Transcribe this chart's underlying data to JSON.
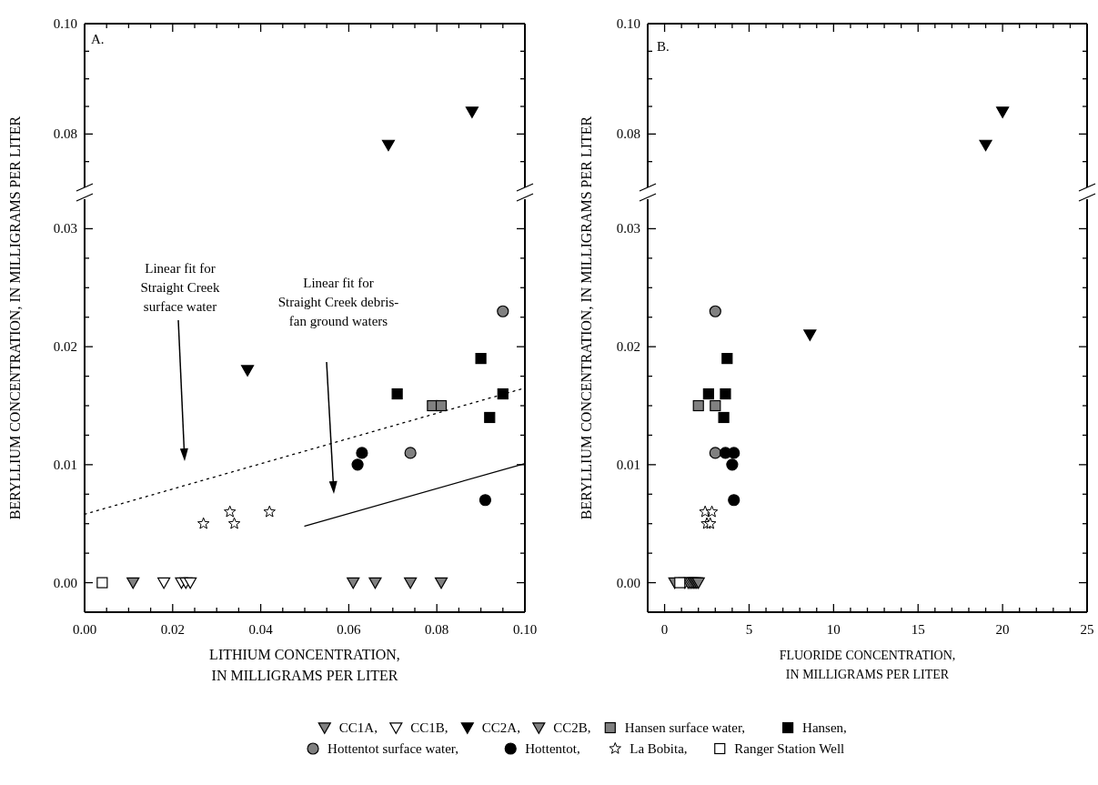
{
  "chart_data": [
    {
      "type": "scatter",
      "xlim": [
        0,
        0.1
      ],
      "ylim": [
        0.07,
        0.1
      ],
      "tick_labels": "y",
      "legend": false,
      "xticks": [
        0,
        {
          "value": 0.005,
          "label": null
        },
        0.02,
        {
          "value": 0.015,
          "label": null
        },
        {
          "value": 0.01,
          "label": null
        },
        {
          "value": 0.025,
          "label": null
        },
        {
          "value": 0.03,
          "label": null
        },
        {
          "value": 0.035,
          "label": null
        },
        0.04,
        {
          "value": 0.045,
          "label": null
        },
        {
          "value": 0.05,
          "label": null
        },
        {
          "value": 0.055,
          "label": null
        },
        0.06,
        {
          "value": 0.065,
          "label": null
        },
        {
          "value": 0.07,
          "label": null
        },
        {
          "value": 0.075,
          "label": null
        },
        0.08,
        {
          "value": 0.085,
          "label": null
        },
        {
          "value": 0.09,
          "label": null
        },
        {
          "value": 0.095,
          "label": null
        },
        0.1
      ],
      "yticks": [
        {
          "value": 0.075,
          "label": null
        },
        {
          "value": 0.08,
          "label": "0.08"
        },
        {
          "value": 0.085,
          "label": null
        },
        {
          "value": 0.09,
          "label": null
        },
        {
          "value": 0.095,
          "label": null
        },
        {
          "value": 0.1,
          "label": "0.10"
        }
      ],
      "annotations": [
        "A."
      ],
      "series": [
        {
          "color": "#000000",
          "marker": "triangle",
          "x": [
            0.069,
            0.088
          ],
          "values": [
            0.078,
            0.084
          ]
        }
      ]
    },
    {
      "type": "scatter",
      "xlim": [
        0,
        0.1
      ],
      "ylim": [
        -0.0025,
        0.0325
      ],
      "legend": false,
      "xlabel": "LITHIUM CONCENTRATION,\nIN MILLIGRAMS PER LITER",
      "ylabel": "BERYLLIUM CONCENTRATION, IN MILLIGRAMS PER LITER",
      "xticks": [
        {
          "value": 0,
          "label": "0.00"
        },
        {
          "value": 0.005,
          "label": null
        },
        {
          "value": 0.01,
          "label": null
        },
        {
          "value": 0.015,
          "label": null
        },
        {
          "value": 0.02,
          "label": "0.02"
        },
        {
          "value": 0.025,
          "label": null
        },
        {
          "value": 0.03,
          "label": null
        },
        {
          "value": 0.035,
          "label": null
        },
        {
          "value": 0.04,
          "label": "0.04"
        },
        {
          "value": 0.045,
          "label": null
        },
        {
          "value": 0.05,
          "label": null
        },
        {
          "value": 0.055,
          "label": null
        },
        {
          "value": 0.06,
          "label": "0.06"
        },
        {
          "value": 0.065,
          "label": null
        },
        {
          "value": 0.07,
          "label": null
        },
        {
          "value": 0.075,
          "label": null
        },
        {
          "value": 0.08,
          "label": "0.08"
        },
        {
          "value": 0.085,
          "label": null
        },
        {
          "value": 0.09,
          "label": null
        },
        {
          "value": 0.095,
          "label": null
        },
        {
          "value": 0.1,
          "label": "0.10"
        }
      ],
      "yticks": [
        {
          "value": 0,
          "label": "0.00"
        },
        {
          "value": 0.0025,
          "label": null
        },
        {
          "value": 0.005,
          "label": null
        },
        {
          "value": 0.0075,
          "label": null
        },
        {
          "value": 0.01,
          "label": "0.01"
        },
        {
          "value": 0.0125,
          "label": null
        },
        {
          "value": 0.015,
          "label": null
        },
        {
          "value": 0.0175,
          "label": null
        },
        {
          "value": 0.02,
          "label": "0.02"
        },
        {
          "value": 0.0225,
          "label": null
        },
        {
          "value": 0.025,
          "label": null
        },
        {
          "value": 0.0275,
          "label": null
        },
        {
          "value": 0.03,
          "label": "0.03"
        }
      ],
      "annotations": [
        "Linear fit for\nStraight Creek\nsurface water",
        "Linear fit for\nStraight Creek debris-\nfan ground waters"
      ],
      "series": [
        {
          "type": "line",
          "color": "#000000",
          "line_style": "dotted",
          "x": [
            0,
            0.1
          ],
          "values": [
            0.0058,
            0.0165
          ]
        },
        {
          "type": "line",
          "color": "#000000",
          "line_style": "solid",
          "x": [
            0.05,
            0.1
          ],
          "values": [
            0.0048,
            0.0101
          ]
        },
        {
          "color": "#808080",
          "marker": "triangle",
          "x": [
            0.011
          ],
          "values": [
            0
          ]
        },
        {
          "color": "#ffffff",
          "marker": "triangle",
          "x": [
            0.018,
            0.022,
            0.023,
            0.024
          ],
          "values": [
            0,
            0,
            0,
            0
          ]
        },
        {
          "color": "#000000",
          "marker": "triangle",
          "x": [
            0.037
          ],
          "values": [
            0.018
          ]
        },
        {
          "color": "#808080",
          "marker": "triangle",
          "x": [
            0.061,
            0.066,
            0.074,
            0.081
          ],
          "values": [
            0,
            0,
            0,
            0
          ]
        },
        {
          "color": "#808080",
          "marker": "square",
          "x": [
            0.079,
            0.081
          ],
          "values": [
            0.015,
            0.015
          ]
        },
        {
          "color": "#000000",
          "marker": "square",
          "x": [
            0.071,
            0.09,
            0.092,
            0.095
          ],
          "values": [
            0.016,
            0.019,
            0.014,
            0.016
          ]
        },
        {
          "color": "#808080",
          "marker": "circle",
          "x": [
            0.074,
            0.095
          ],
          "values": [
            0.011,
            0.023
          ]
        },
        {
          "color": "#000000",
          "marker": "circle",
          "x": [
            0.062,
            0.063,
            0.091
          ],
          "values": [
            0.01,
            0.011,
            0.007
          ]
        },
        {
          "color": "#ffffff",
          "marker": "star",
          "x": [
            0.027,
            0.033,
            0.034,
            0.042
          ],
          "values": [
            0.005,
            0.006,
            0.005,
            0.006
          ]
        },
        {
          "color": "#ffffff",
          "marker": "square",
          "x": [
            0.004
          ],
          "values": [
            0
          ]
        }
      ]
    },
    {
      "type": "scatter",
      "xlim": [
        -1,
        25
      ],
      "ylim": [
        0.07,
        0.1
      ],
      "tick_labels": "y",
      "legend": false,
      "xticks": [
        0,
        {
          "value": 1,
          "label": null
        },
        {
          "value": 2,
          "label": null
        },
        {
          "value": 3,
          "label": null
        },
        {
          "value": 4,
          "label": null
        },
        5,
        {
          "value": 6,
          "label": null
        },
        {
          "value": 7,
          "label": null
        },
        {
          "value": 8,
          "label": null
        },
        {
          "value": 9,
          "label": null
        },
        10,
        {
          "value": 11,
          "label": null
        },
        {
          "value": 12,
          "label": null
        },
        {
          "value": 13,
          "label": null
        },
        {
          "value": 14,
          "label": null
        },
        15,
        {
          "value": 16,
          "label": null
        },
        {
          "value": 17,
          "label": null
        },
        {
          "value": 18,
          "label": null
        },
        {
          "value": 19,
          "label": null
        },
        20,
        {
          "value": 21,
          "label": null
        },
        {
          "value": 22,
          "label": null
        },
        {
          "value": 23,
          "label": null
        },
        {
          "value": 24,
          "label": null
        },
        25
      ],
      "yticks": [
        {
          "value": 0.075,
          "label": null
        },
        {
          "value": 0.08,
          "label": "0.08"
        },
        {
          "value": 0.085,
          "label": null
        },
        {
          "value": 0.09,
          "label": null
        },
        {
          "value": 0.095,
          "label": null
        },
        {
          "value": 0.1,
          "label": "0.10"
        }
      ],
      "annotations": [
        "B."
      ],
      "series": [
        {
          "color": "#000000",
          "marker": "triangle",
          "x": [
            19,
            20
          ],
          "values": [
            0.078,
            0.084
          ]
        }
      ]
    },
    {
      "type": "scatter",
      "xlim": [
        -1,
        25
      ],
      "ylim": [
        -0.0025,
        0.0325
      ],
      "legend": "bottom",
      "xlabel": "FLUORIDE CONCENTRATION,\nIN MILLIGRAMS PER LITER",
      "ylabel": "BERYLLIUM CONCENTRATION, IN MILLIGRAMS PER LITER",
      "xticks": [
        0,
        {
          "value": 1,
          "label": null
        },
        {
          "value": 2,
          "label": null
        },
        {
          "value": 3,
          "label": null
        },
        {
          "value": 4,
          "label": null
        },
        5,
        {
          "value": 6,
          "label": null
        },
        {
          "value": 7,
          "label": null
        },
        {
          "value": 8,
          "label": null
        },
        {
          "value": 9,
          "label": null
        },
        10,
        {
          "value": 11,
          "label": null
        },
        {
          "value": 12,
          "label": null
        },
        {
          "value": 13,
          "label": null
        },
        {
          "value": 14,
          "label": null
        },
        15,
        {
          "value": 16,
          "label": null
        },
        {
          "value": 17,
          "label": null
        },
        {
          "value": 18,
          "label": null
        },
        {
          "value": 19,
          "label": null
        },
        20,
        {
          "value": 21,
          "label": null
        },
        {
          "value": 22,
          "label": null
        },
        {
          "value": 23,
          "label": null
        },
        {
          "value": 24,
          "label": null
        },
        25
      ],
      "yticks": [
        {
          "value": 0,
          "label": "0.00"
        },
        {
          "value": 0.0025,
          "label": null
        },
        {
          "value": 0.005,
          "label": null
        },
        {
          "value": 0.0075,
          "label": null
        },
        {
          "value": 0.01,
          "label": "0.01"
        },
        {
          "value": 0.0125,
          "label": null
        },
        {
          "value": 0.015,
          "label": null
        },
        {
          "value": 0.0175,
          "label": null
        },
        {
          "value": 0.02,
          "label": "0.02"
        },
        {
          "value": 0.0225,
          "label": null
        },
        {
          "value": 0.025,
          "label": null
        },
        {
          "value": 0.0275,
          "label": null
        },
        {
          "value": 0.03,
          "label": "0.03"
        }
      ],
      "series": [
        {
          "name": "CC1A,",
          "color": "#808080",
          "marker": "triangle",
          "x": [
            0.6
          ],
          "values": [
            0
          ]
        },
        {
          "name": "CC1B,",
          "color": "#ffffff",
          "marker": "triangle",
          "x": [
            1.2,
            1.4,
            1.5,
            1.6
          ],
          "values": [
            0,
            0,
            0,
            0
          ]
        },
        {
          "name": "CC2A,",
          "color": "#000000",
          "marker": "triangle",
          "x": [
            8.6
          ],
          "values": [
            0.021
          ]
        },
        {
          "name": "CC2B,",
          "color": "#808080",
          "marker": "triangle",
          "x": [
            1.7,
            1.8,
            1.9,
            2.0
          ],
          "values": [
            0,
            0,
            0,
            0
          ]
        },
        {
          "name": "Hansen surface water,",
          "color": "#808080",
          "marker": "square",
          "x": [
            2.0,
            3.0
          ],
          "values": [
            0.015,
            0.015
          ]
        },
        {
          "name": "Hansen,",
          "color": "#000000",
          "marker": "square",
          "x": [
            2.6,
            3.7,
            3.6,
            3.5
          ],
          "values": [
            0.016,
            0.019,
            0.016,
            0.014
          ]
        },
        {
          "name": "Hottentot surface water,",
          "color": "#808080",
          "marker": "circle",
          "x": [
            3.0,
            3.0
          ],
          "values": [
            0.023,
            0.011
          ]
        },
        {
          "name": "Hottentot,",
          "color": "#000000",
          "marker": "circle",
          "x": [
            3.6,
            4.1,
            4.0,
            4.1
          ],
          "values": [
            0.011,
            0.011,
            0.01,
            0.007
          ]
        },
        {
          "name": "La Bobita,",
          "color": "#ffffff",
          "marker": "star",
          "x": [
            2.4,
            2.8,
            2.5,
            2.7
          ],
          "values": [
            0.006,
            0.006,
            0.005,
            0.005
          ]
        },
        {
          "name": "Ranger Station Well",
          "color": "#ffffff",
          "marker": "square",
          "x": [
            0.9
          ],
          "values": [
            0
          ]
        }
      ]
    }
  ]
}
